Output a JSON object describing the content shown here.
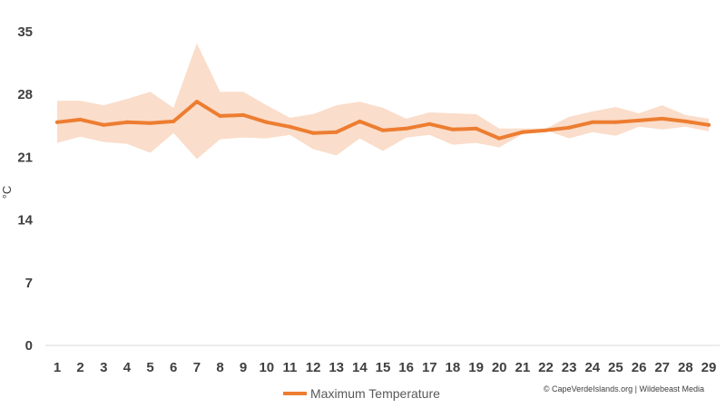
{
  "chart_data": {
    "type": "line",
    "title": "",
    "xlabel": "",
    "ylabel": "°C",
    "ylim": [
      0,
      35
    ],
    "yticks": [
      0,
      7,
      14,
      21,
      28,
      35
    ],
    "x": [
      1,
      2,
      3,
      4,
      5,
      6,
      7,
      8,
      9,
      10,
      11,
      12,
      13,
      14,
      15,
      16,
      17,
      18,
      19,
      20,
      21,
      22,
      23,
      24,
      25,
      26,
      27,
      28,
      29
    ],
    "series": [
      {
        "name": "Maximum Temperature",
        "color": "#ED7D31",
        "values": [
          24.9,
          25.2,
          24.6,
          24.9,
          24.8,
          25.0,
          27.2,
          25.6,
          25.7,
          24.9,
          24.4,
          23.7,
          23.8,
          25.0,
          24.0,
          24.2,
          24.7,
          24.1,
          24.2,
          23.1,
          23.8,
          24.0,
          24.3,
          24.9,
          24.9,
          25.1,
          25.3,
          25.0,
          24.6
        ]
      }
    ],
    "range_band": {
      "color": "#F8CBAD",
      "upper": [
        27.3,
        27.3,
        26.8,
        27.5,
        28.3,
        26.5,
        33.7,
        28.3,
        28.3,
        26.8,
        25.4,
        25.8,
        26.8,
        27.2,
        26.5,
        25.3,
        26.0,
        25.9,
        25.8,
        24.2,
        24.2,
        24.2,
        25.5,
        26.1,
        26.6,
        25.9,
        26.8,
        25.7,
        25.3
      ],
      "lower": [
        22.6,
        23.3,
        22.7,
        22.5,
        21.5,
        23.7,
        20.8,
        23.0,
        23.2,
        23.1,
        23.5,
        21.9,
        21.2,
        23.1,
        21.7,
        23.2,
        23.5,
        22.4,
        22.6,
        22.1,
        23.6,
        24.0,
        23.1,
        23.8,
        23.4,
        24.4,
        24.1,
        24.4,
        23.9
      ]
    },
    "grid": false,
    "legend_position": "bottom"
  },
  "credit": "© CapeVerdeIslands.org | Wildebeast Media"
}
